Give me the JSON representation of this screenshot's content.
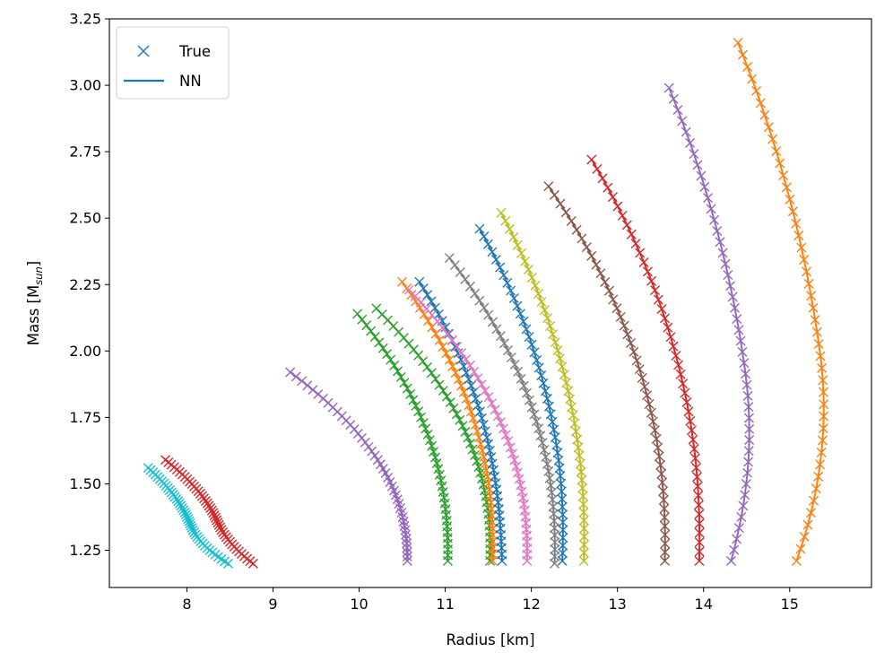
{
  "chart_data": {
    "type": "line",
    "xlabel": "Radius [km]",
    "ylabel": "Mass [M",
    "ylabel_sub": "sun",
    "ylabel_close": "]",
    "xlim": [
      7.1,
      15.95
    ],
    "ylim": [
      1.11,
      3.25
    ],
    "xticks": [
      8,
      9,
      10,
      11,
      12,
      13,
      14,
      15
    ],
    "yticks": [
      1.25,
      1.5,
      1.75,
      2.0,
      2.25,
      2.5,
      2.75,
      3.0,
      3.25
    ],
    "ytick_labels": [
      "1.25",
      "1.50",
      "1.75",
      "2.00",
      "2.25",
      "2.50",
      "2.75",
      "3.00",
      "3.25"
    ],
    "legend": {
      "placement": "top-left",
      "entries": [
        {
          "label": "True",
          "marker": "x",
          "color": "#1f77b4"
        },
        {
          "label": "NN",
          "marker": "line",
          "color": "#1f77b4"
        }
      ]
    },
    "series": [
      {
        "color": "#17becf",
        "rmax": 7.55,
        "mmax": 1.56,
        "rbot": 8.48,
        "mbot": 1.2,
        "rmid": 8.12
      },
      {
        "color": "#d62728",
        "rmax": 7.75,
        "mmax": 1.59,
        "rbot": 8.77,
        "mbot": 1.2,
        "rmid": 8.45
      },
      {
        "color": "#9467bd",
        "rmax": 9.2,
        "mmax": 1.92,
        "rbot": 10.56,
        "mbot": 1.21,
        "rmid": 10.56
      },
      {
        "color": "#2ca02c",
        "rmax": 9.98,
        "mmax": 2.14,
        "rbot": 11.03,
        "mbot": 1.21,
        "rmid": 11.04
      },
      {
        "color": "#2ca02c",
        "rmax": 10.2,
        "mmax": 2.16,
        "rbot": 11.52,
        "mbot": 1.21,
        "rmid": 11.54
      },
      {
        "color": "#ff7f0e",
        "rmax": 10.5,
        "mmax": 2.26,
        "rbot": 11.55,
        "mbot": 1.21,
        "rmid": 11.57
      },
      {
        "color": "#1f77b4",
        "rmax": 10.7,
        "mmax": 2.26,
        "rbot": 11.66,
        "mbot": 1.21,
        "rmid": 11.64
      },
      {
        "color": "#e377c2",
        "rmax": 10.58,
        "mmax": 2.23,
        "rbot": 11.95,
        "mbot": 1.21,
        "rmid": 11.96
      },
      {
        "color": "#7f7f7f",
        "rmax": 11.05,
        "mmax": 2.35,
        "rbot": 12.27,
        "mbot": 1.2,
        "rmid": 12.29
      },
      {
        "color": "#1f77b4",
        "rmax": 11.4,
        "mmax": 2.46,
        "rbot": 12.36,
        "mbot": 1.21,
        "rmid": 12.39
      },
      {
        "color": "#bcbd22",
        "rmax": 11.65,
        "mmax": 2.52,
        "rbot": 12.61,
        "mbot": 1.21,
        "rmid": 12.63
      },
      {
        "color": "#8c564b",
        "rmax": 12.2,
        "mmax": 2.62,
        "rbot": 13.55,
        "mbot": 1.21,
        "rmid": 13.57
      },
      {
        "color": "#d62728",
        "rmax": 12.7,
        "mmax": 2.72,
        "rbot": 13.95,
        "mbot": 1.21,
        "rmid": 13.97
      },
      {
        "color": "#9467bd",
        "rmax": 13.6,
        "mmax": 2.99,
        "rbot": 14.32,
        "mbot": 1.21,
        "rmid": 14.62
      },
      {
        "color": "#ff7f0e",
        "rmax": 14.4,
        "mmax": 3.16,
        "rbot": 15.08,
        "mbot": 1.21,
        "rmid": 15.5
      }
    ]
  }
}
